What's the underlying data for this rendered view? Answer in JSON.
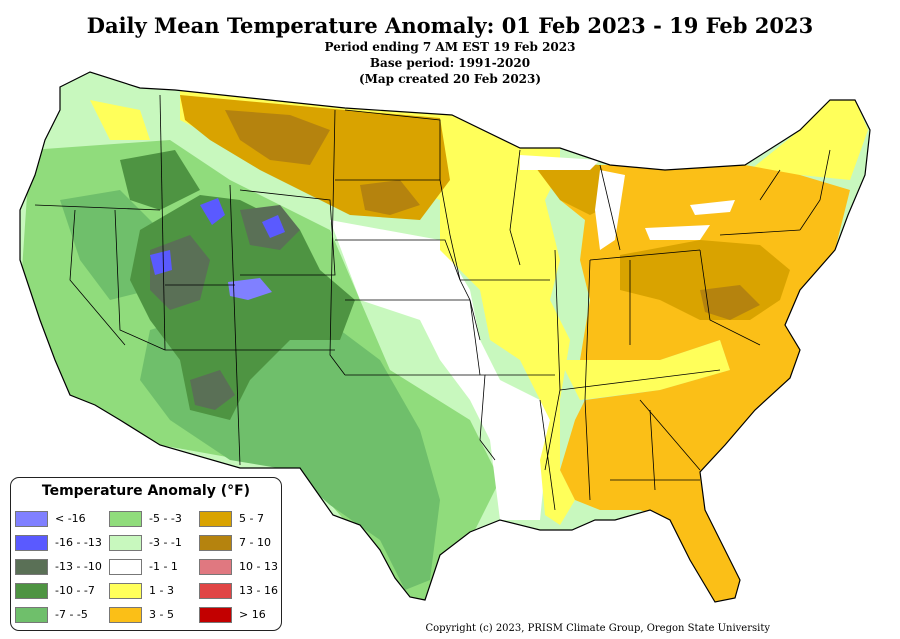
{
  "header": {
    "title": "Daily Mean Temperature Anomaly: 01 Feb 2023 - 19 Feb 2023",
    "line1": "Period ending 7 AM EST 19 Feb 2023",
    "line2": "Base period: 1991-2020",
    "line3": "(Map created 20 Feb 2023)"
  },
  "legend": {
    "title": "Temperature Anomaly (°F)",
    "items": [
      {
        "label": "< -16",
        "color": "#8080ff"
      },
      {
        "label": "-16 - -13",
        "color": "#5a5aff"
      },
      {
        "label": "-13 - -10",
        "color": "#5a7056"
      },
      {
        "label": "-10 - -7",
        "color": "#4e9442"
      },
      {
        "label": "-7 - -5",
        "color": "#6fbf6b"
      },
      {
        "label": "-5 - -3",
        "color": "#90dc7c"
      },
      {
        "label": "-3 - -1",
        "color": "#c8f8be"
      },
      {
        "label": "-1 - 1",
        "color": "#ffffff"
      },
      {
        "label": "1 - 3",
        "color": "#ffff5a"
      },
      {
        "label": "3 - 5",
        "color": "#fbbf17"
      },
      {
        "label": "5 - 7",
        "color": "#d9a300"
      },
      {
        "label": "7 - 10",
        "color": "#b5830e"
      },
      {
        "label": "10 - 13",
        "color": "#e07880"
      },
      {
        "label": "13 - 16",
        "color": "#e04545"
      },
      {
        "label": "> 16",
        "color": "#c20000"
      }
    ]
  },
  "footer": {
    "copyright": "Copyright (c) 2023, PRISM Climate Group, Oregon State University"
  }
}
